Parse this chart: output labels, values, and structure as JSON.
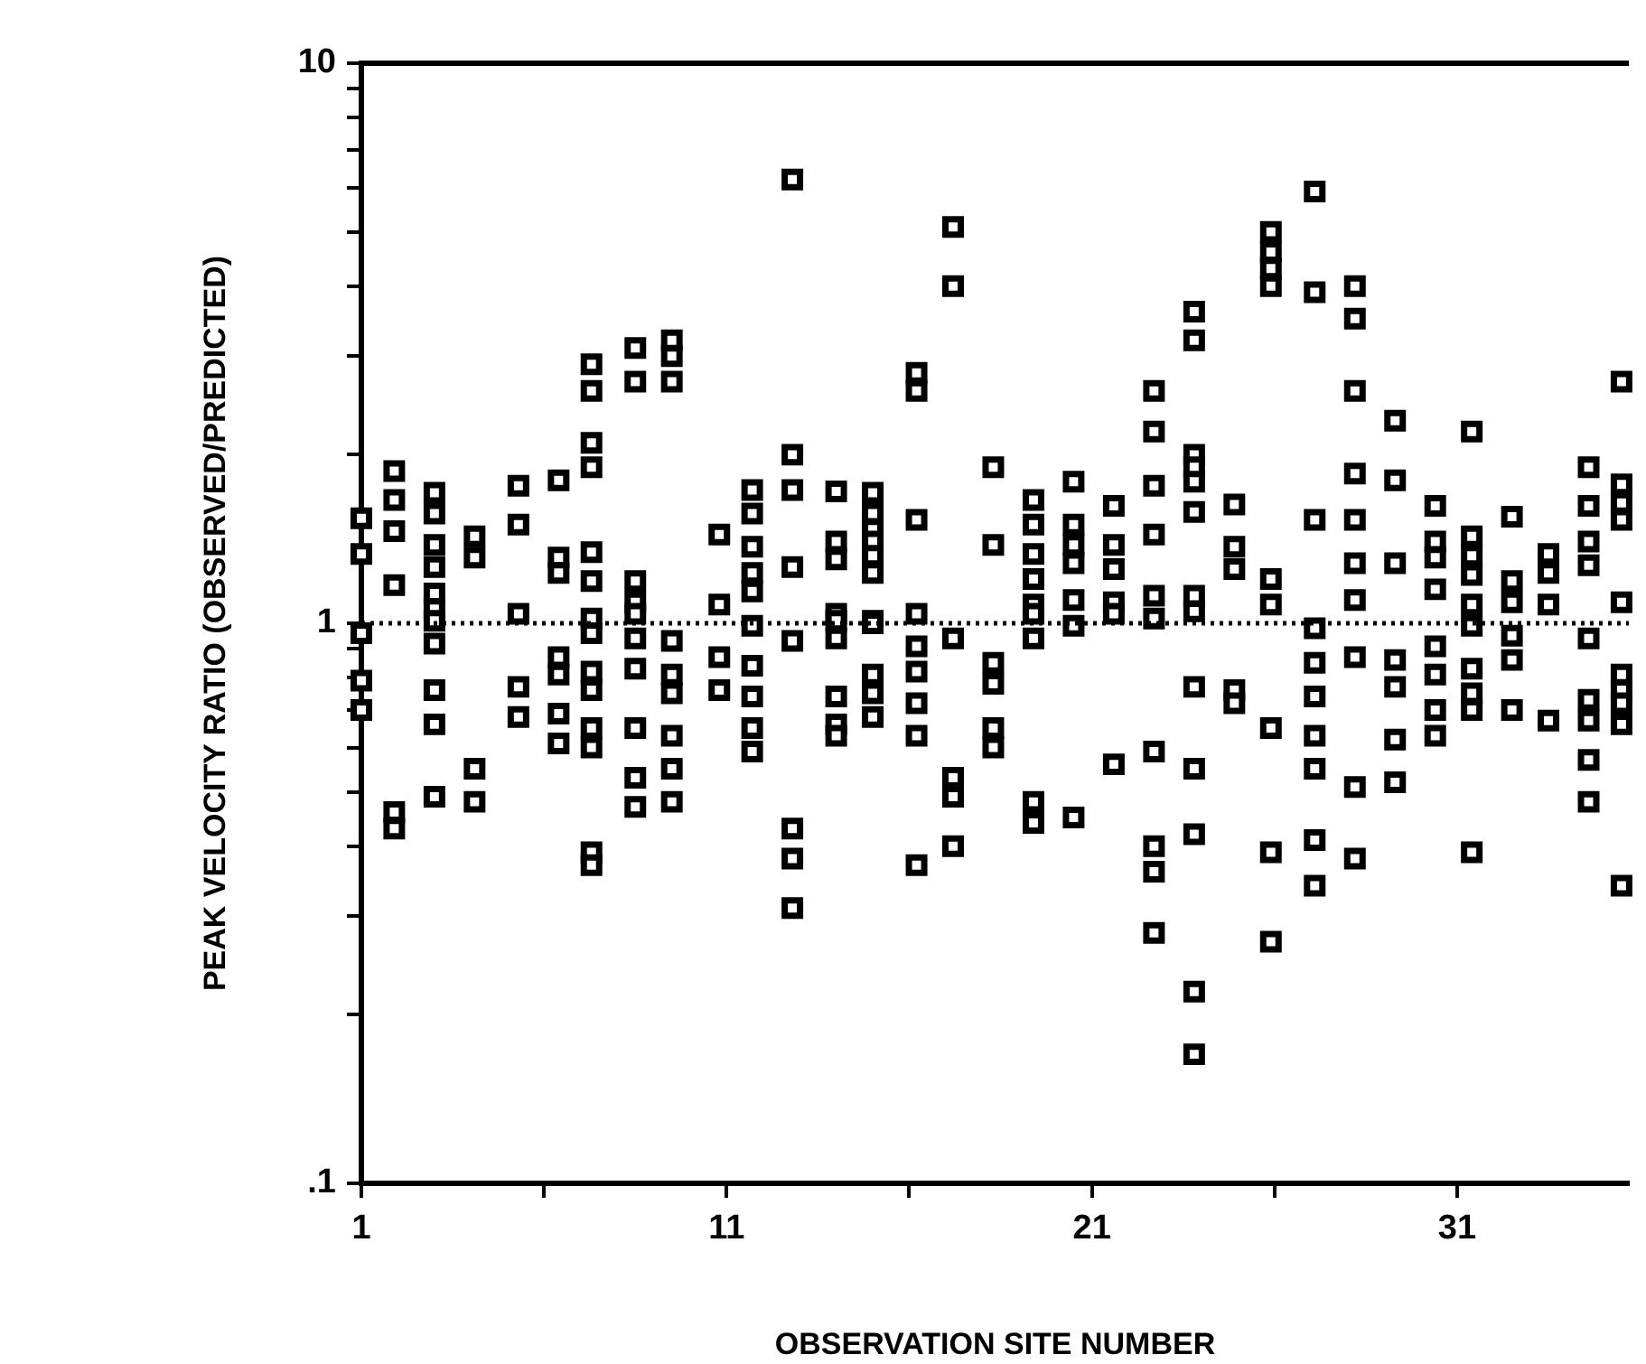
{
  "chart_data": {
    "type": "scatter",
    "xlabel": "OBSERVATION SITE NUMBER",
    "ylabel": "PEAK VELOCITY RATIO (OBSERVED/PREDICTED)",
    "x": [
      1,
      1,
      1,
      1,
      1,
      1.9,
      1.9,
      1.9,
      1.9,
      1.9,
      1.9,
      3,
      3,
      3,
      3,
      3,
      3,
      3,
      3,
      3,
      3,
      3,
      4.1,
      4.1,
      4.1,
      4.1,
      5.3,
      5.3,
      5.3,
      5.3,
      5.3,
      6.4,
      6.4,
      6.4,
      6.4,
      6.4,
      6.4,
      6.4,
      7.3,
      7.3,
      7.3,
      7.3,
      7.3,
      7.3,
      7.3,
      7.3,
      7.3,
      7.3,
      7.3,
      7.3,
      7.3,
      7.3,
      8.5,
      8.5,
      8.5,
      8.5,
      8.5,
      8.5,
      8.5,
      8.5,
      8.5,
      8.5,
      9.5,
      9.5,
      9.5,
      9.5,
      9.5,
      9.5,
      9.5,
      9.5,
      9.5,
      10.8,
      10.8,
      10.8,
      10.8,
      11.7,
      11.7,
      11.7,
      11.7,
      11.7,
      11.7,
      11.7,
      11.7,
      11.7,
      11.7,
      12.8,
      12.8,
      12.8,
      12.8,
      12.8,
      12.8,
      12.8,
      12.8,
      14,
      14,
      14,
      14,
      14,
      14,
      14,
      14,
      14,
      15,
      15,
      15,
      15,
      15,
      15,
      15,
      15,
      15,
      15,
      15,
      16.2,
      16.2,
      16.2,
      16.2,
      16.2,
      16.2,
      16.2,
      16.2,
      16.2,
      17.2,
      17.2,
      17.2,
      17.2,
      17.2,
      17.2,
      18.3,
      18.3,
      18.3,
      18.3,
      18.3,
      18.3,
      19.4,
      19.4,
      19.4,
      19.4,
      19.4,
      19.4,
      19.4,
      19.4,
      19.4,
      20.5,
      20.5,
      20.5,
      20.5,
      20.5,
      20.5,
      20.5,
      21.6,
      21.6,
      21.6,
      21.6,
      21.6,
      21.6,
      22.7,
      22.7,
      22.7,
      22.7,
      22.7,
      22.7,
      22.7,
      22.7,
      22.7,
      22.7,
      23.8,
      23.8,
      23.8,
      23.8,
      23.8,
      23.8,
      23.8,
      23.8,
      23.8,
      23.8,
      23.8,
      23.8,
      23.8,
      24.9,
      24.9,
      24.9,
      24.9,
      24.9,
      25.9,
      25.9,
      25.9,
      25.9,
      25.9,
      25.9,
      25.9,
      25.9,
      25.9,
      27.1,
      27.1,
      27.1,
      27.1,
      27.1,
      27.1,
      27.1,
      27.1,
      27.1,
      27.1,
      28.2,
      28.2,
      28.2,
      28.2,
      28.2,
      28.2,
      28.2,
      28.2,
      28.2,
      28.2,
      29.3,
      29.3,
      29.3,
      29.3,
      29.3,
      29.3,
      29.3,
      30.4,
      30.4,
      30.4,
      30.4,
      30.4,
      30.4,
      30.4,
      30.4,
      31.4,
      31.4,
      31.4,
      31.4,
      31.4,
      31.4,
      31.4,
      31.4,
      31.4,
      31.4,
      32.5,
      32.5,
      32.5,
      32.5,
      32.5,
      32.5,
      33.5,
      33.5,
      33.5,
      33.5,
      34.6,
      34.6,
      34.6,
      34.6,
      34.6,
      34.6,
      34.6,
      34.6,
      34.6,
      35.5,
      35.5,
      35.5,
      35.5,
      35.5,
      35.5,
      35.5,
      35.5,
      35.5,
      35.5
    ],
    "values": [
      1.54,
      1.33,
      0.96,
      0.79,
      0.7,
      1.87,
      1.66,
      1.46,
      1.17,
      0.46,
      0.43,
      1.71,
      1.57,
      1.38,
      1.26,
      1.13,
      1.06,
      1.01,
      0.92,
      0.76,
      0.66,
      0.49,
      1.43,
      1.31,
      0.55,
      0.48,
      1.76,
      1.5,
      1.04,
      0.77,
      0.68,
      1.8,
      1.31,
      1.23,
      0.87,
      0.81,
      0.69,
      0.61,
      2.9,
      2.6,
      2.1,
      1.9,
      1.34,
      1.19,
      1.02,
      0.96,
      0.82,
      0.76,
      0.65,
      0.6,
      0.39,
      0.37,
      3.1,
      2.7,
      1.19,
      1.09,
      1.04,
      0.94,
      0.83,
      0.65,
      0.53,
      0.47,
      3.2,
      3.0,
      2.7,
      0.93,
      0.81,
      0.75,
      0.63,
      0.55,
      0.48,
      1.44,
      1.08,
      0.87,
      0.76,
      1.73,
      1.57,
      1.37,
      1.23,
      1.14,
      0.99,
      0.84,
      0.74,
      0.65,
      0.59,
      6.2,
      2.0,
      1.73,
      1.26,
      0.93,
      0.43,
      0.38,
      0.31,
      1.72,
      1.4,
      1.3,
      1.04,
      1.01,
      0.94,
      0.74,
      0.66,
      0.63,
      1.71,
      1.57,
      1.47,
      1.4,
      1.32,
      1.23,
      1.01,
      1.0,
      0.81,
      0.75,
      0.68,
      2.8,
      2.6,
      1.53,
      1.04,
      0.91,
      0.82,
      0.72,
      0.63,
      0.37,
      5.1,
      4.0,
      0.94,
      0.53,
      0.49,
      0.4,
      1.9,
      1.38,
      0.85,
      0.78,
      0.65,
      0.6,
      1.66,
      1.5,
      1.33,
      1.2,
      1.08,
      1.04,
      0.94,
      0.48,
      0.44,
      1.79,
      1.5,
      1.38,
      1.28,
      1.1,
      0.99,
      0.45,
      1.62,
      1.38,
      1.25,
      1.09,
      1.04,
      0.56,
      2.6,
      2.2,
      1.76,
      1.44,
      1.12,
      1.02,
      0.59,
      0.4,
      0.36,
      0.28,
      3.6,
      3.2,
      2.0,
      1.9,
      1.79,
      1.58,
      1.12,
      1.05,
      0.77,
      0.55,
      0.42,
      0.22,
      0.17,
      1.63,
      1.37,
      1.25,
      0.76,
      0.72,
      5.0,
      4.6,
      4.3,
      4.0,
      1.2,
      1.08,
      0.65,
      0.39,
      0.27,
      5.9,
      3.9,
      1.53,
      0.98,
      0.85,
      0.74,
      0.63,
      0.55,
      0.41,
      0.34,
      4.0,
      3.5,
      2.6,
      1.85,
      1.53,
      1.28,
      1.1,
      0.87,
      0.51,
      0.38,
      2.3,
      1.8,
      1.28,
      0.86,
      0.77,
      0.62,
      0.52,
      1.62,
      1.4,
      1.31,
      1.15,
      0.91,
      0.81,
      0.7,
      0.63,
      2.2,
      1.43,
      1.32,
      1.22,
      1.08,
      0.99,
      0.83,
      0.75,
      0.7,
      0.39,
      1.55,
      1.19,
      1.09,
      0.95,
      0.86,
      0.7,
      1.33,
      1.23,
      1.08,
      0.67,
      1.9,
      1.62,
      1.4,
      1.27,
      0.94,
      0.73,
      0.67,
      0.57,
      0.48,
      2.7,
      1.77,
      1.64,
      1.53,
      1.09,
      0.81,
      0.76,
      0.72,
      0.66,
      0.34
    ],
    "color": "#000000",
    "marker": "square",
    "log": "y",
    "xlim": [
      1,
      35.7
    ],
    "xticks": [
      1,
      {
        "value": 6,
        "label": null
      },
      11,
      {
        "value": 16,
        "label": null
      },
      21,
      {
        "value": 26,
        "label": null
      },
      31
    ],
    "ylim": [
      0.1,
      10
    ],
    "yticks": [
      {
        "value": 0.1,
        "label": ".1"
      },
      {
        "value": 0.2,
        "label": null
      },
      {
        "value": 0.3,
        "label": null
      },
      {
        "value": 0.4,
        "label": null
      },
      {
        "value": 0.5,
        "label": null
      },
      {
        "value": 0.6,
        "label": null
      },
      {
        "value": 0.7,
        "label": null
      },
      {
        "value": 0.8,
        "label": null
      },
      {
        "value": 0.9,
        "label": null
      },
      1,
      {
        "value": 2,
        "label": null
      },
      {
        "value": 3,
        "label": null
      },
      {
        "value": 4,
        "label": null
      },
      {
        "value": 5,
        "label": null
      },
      {
        "value": 6,
        "label": null
      },
      {
        "value": 7,
        "label": null
      },
      {
        "value": 8,
        "label": null
      },
      {
        "value": 9,
        "label": null
      },
      10
    ],
    "grid": false,
    "ref_lines": [
      {
        "axis": "y",
        "value": 1,
        "line_style": "dotted",
        "color": "#000000"
      }
    ]
  }
}
